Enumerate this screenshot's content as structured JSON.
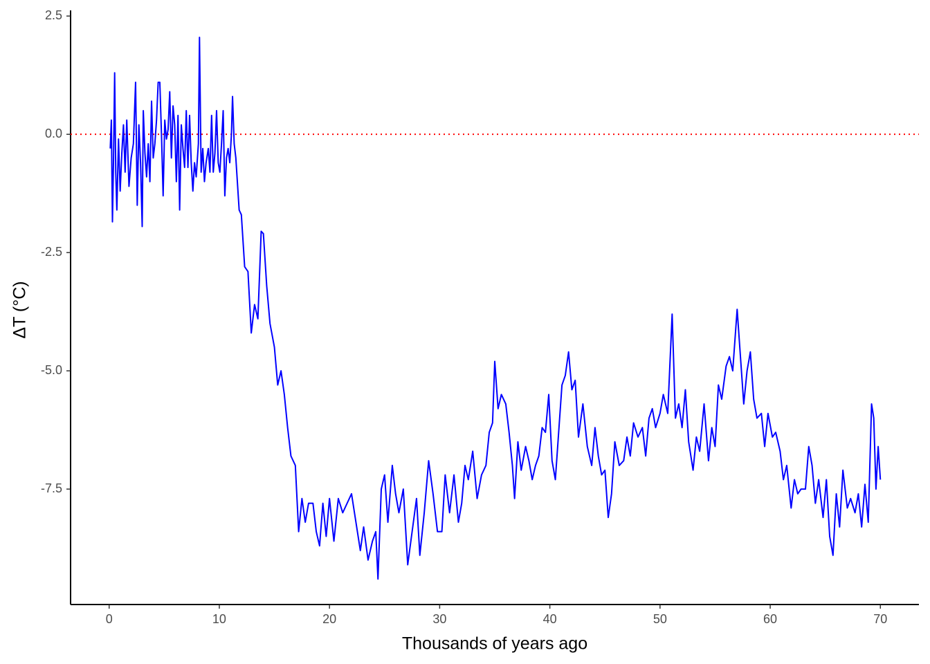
{
  "chart_data": {
    "type": "line",
    "x_label": "Thousands of years ago",
    "y_label": "ΔT (°C)",
    "xlim": [
      -3.5,
      73.5
    ],
    "ylim": [
      -9.94,
      2.62
    ],
    "xticks": [
      0,
      10,
      20,
      30,
      40,
      50,
      60,
      70
    ],
    "yticks": [
      2.5,
      {
        "value": 0,
        "label": "0.0"
      },
      -2.5,
      {
        "value": -5,
        "label": "-5.0"
      },
      -7.5
    ],
    "reference_line": {
      "value": 0,
      "color": "#ff0000"
    },
    "series": [
      {
        "color": "#0000ff",
        "x": [
          0.1,
          0.2,
          0.3,
          0.4,
          0.5,
          0.6,
          0.7,
          0.85,
          1.0,
          1.15,
          1.3,
          1.45,
          1.6,
          1.8,
          2.0,
          2.2,
          2.4,
          2.55,
          2.7,
          2.85,
          3.0,
          3.1,
          3.25,
          3.4,
          3.55,
          3.7,
          3.85,
          4.0,
          4.15,
          4.3,
          4.45,
          4.6,
          4.75,
          4.9,
          5.05,
          5.2,
          5.35,
          5.5,
          5.65,
          5.8,
          5.95,
          6.1,
          6.25,
          6.4,
          6.55,
          6.7,
          6.85,
          7.0,
          7.15,
          7.3,
          7.45,
          7.6,
          7.75,
          7.9,
          8.1,
          8.2,
          8.35,
          8.5,
          8.65,
          8.8,
          9.0,
          9.15,
          9.3,
          9.45,
          9.6,
          9.75,
          9.9,
          10.05,
          10.2,
          10.35,
          10.5,
          10.65,
          10.8,
          10.95,
          11.1,
          11.2,
          11.35,
          11.5,
          11.8,
          12.0,
          12.3,
          12.6,
          12.9,
          13.2,
          13.5,
          13.8,
          14.0,
          14.3,
          14.6,
          15.0,
          15.3,
          15.6,
          15.9,
          16.2,
          16.5,
          16.9,
          17.2,
          17.5,
          17.8,
          18.1,
          18.5,
          18.8,
          19.1,
          19.4,
          19.7,
          20.0,
          20.4,
          20.8,
          21.2,
          21.6,
          22.0,
          22.4,
          22.8,
          23.1,
          23.5,
          23.9,
          24.2,
          24.4,
          24.7,
          25.0,
          25.3,
          25.7,
          26.0,
          26.3,
          26.7,
          27.1,
          27.5,
          27.9,
          28.2,
          28.6,
          29.0,
          29.4,
          29.8,
          30.2,
          30.5,
          30.9,
          31.3,
          31.7,
          32.0,
          32.3,
          32.6,
          33.0,
          33.4,
          33.8,
          34.2,
          34.5,
          34.8,
          35.0,
          35.3,
          35.6,
          36.0,
          36.3,
          36.6,
          36.8,
          37.1,
          37.4,
          37.8,
          38.1,
          38.4,
          38.7,
          39.0,
          39.3,
          39.6,
          39.9,
          40.2,
          40.5,
          40.8,
          41.1,
          41.4,
          41.7,
          42.0,
          42.3,
          42.6,
          43.0,
          43.4,
          43.8,
          44.1,
          44.4,
          44.7,
          45.0,
          45.3,
          45.6,
          45.9,
          46.3,
          46.7,
          47.0,
          47.3,
          47.6,
          48.0,
          48.4,
          48.7,
          49.0,
          49.3,
          49.6,
          50.0,
          50.3,
          50.7,
          51.1,
          51.4,
          51.7,
          52.0,
          52.3,
          52.6,
          53.0,
          53.3,
          53.6,
          54.0,
          54.4,
          54.7,
          55.0,
          55.3,
          55.6,
          56.0,
          56.3,
          56.6,
          57.0,
          57.3,
          57.6,
          57.9,
          58.2,
          58.5,
          58.8,
          59.2,
          59.5,
          59.8,
          60.2,
          60.5,
          60.9,
          61.2,
          61.5,
          61.9,
          62.2,
          62.5,
          62.8,
          63.2,
          63.5,
          63.8,
          64.1,
          64.4,
          64.8,
          65.1,
          65.4,
          65.7,
          66.0,
          66.3,
          66.6,
          67.0,
          67.3,
          67.7,
          68.0,
          68.3,
          68.6,
          68.9,
          69.2,
          69.4,
          69.6,
          69.8,
          70.0
        ],
        "values": [
          -0.3,
          0.3,
          -1.85,
          -0.5,
          1.3,
          -0.8,
          -1.6,
          -0.1,
          -1.2,
          -0.4,
          0.2,
          -0.8,
          0.3,
          -1.1,
          -0.5,
          -0.2,
          1.1,
          -1.5,
          0.2,
          -0.6,
          -1.95,
          0.5,
          -0.4,
          -0.9,
          -0.2,
          -1.0,
          0.7,
          -0.5,
          -0.2,
          0.3,
          1.1,
          1.1,
          0.0,
          -1.3,
          0.3,
          -0.1,
          0.1,
          0.9,
          -0.5,
          0.6,
          0.2,
          -1.0,
          0.4,
          -1.6,
          0.2,
          -0.3,
          -0.7,
          0.5,
          -0.7,
          0.4,
          -0.6,
          -1.2,
          -0.6,
          -0.9,
          -0.2,
          2.05,
          -0.8,
          -0.3,
          -1.0,
          -0.6,
          -0.3,
          -0.8,
          0.4,
          -0.8,
          -0.4,
          0.5,
          -0.6,
          -0.8,
          -0.2,
          0.5,
          -1.3,
          -0.5,
          -0.3,
          -0.6,
          0.0,
          0.8,
          -0.2,
          -0.5,
          -1.6,
          -1.7,
          -2.8,
          -2.9,
          -4.2,
          -3.6,
          -3.9,
          -2.05,
          -2.1,
          -3.2,
          -4.0,
          -4.5,
          -5.3,
          -5.0,
          -5.5,
          -6.2,
          -6.8,
          -7.0,
          -8.4,
          -7.7,
          -8.2,
          -7.8,
          -7.8,
          -8.4,
          -8.7,
          -7.8,
          -8.5,
          -7.7,
          -8.6,
          -7.7,
          -8.0,
          -7.8,
          -7.6,
          -8.2,
          -8.8,
          -8.3,
          -9.0,
          -8.6,
          -8.4,
          -9.4,
          -7.5,
          -7.2,
          -8.2,
          -7.0,
          -7.6,
          -8.0,
          -7.5,
          -9.1,
          -8.4,
          -7.7,
          -8.9,
          -8.0,
          -6.9,
          -7.6,
          -8.4,
          -8.4,
          -7.2,
          -8.0,
          -7.2,
          -8.2,
          -7.8,
          -7.0,
          -7.3,
          -6.7,
          -7.7,
          -7.2,
          -7.0,
          -6.3,
          -6.1,
          -4.8,
          -5.8,
          -5.5,
          -5.7,
          -6.3,
          -7.0,
          -7.7,
          -6.5,
          -7.1,
          -6.6,
          -6.9,
          -7.3,
          -7.0,
          -6.8,
          -6.2,
          -6.3,
          -5.5,
          -6.9,
          -7.3,
          -6.3,
          -5.3,
          -5.1,
          -4.6,
          -5.4,
          -5.2,
          -6.4,
          -5.7,
          -6.6,
          -7.0,
          -6.2,
          -6.8,
          -7.2,
          -7.1,
          -8.1,
          -7.6,
          -6.5,
          -7.0,
          -6.9,
          -6.4,
          -6.8,
          -6.1,
          -6.4,
          -6.2,
          -6.8,
          -6.0,
          -5.8,
          -6.2,
          -5.9,
          -5.5,
          -5.9,
          -3.8,
          -6.0,
          -5.7,
          -6.2,
          -5.4,
          -6.5,
          -7.1,
          -6.4,
          -6.7,
          -5.7,
          -6.9,
          -6.2,
          -6.6,
          -5.3,
          -5.6,
          -4.9,
          -4.7,
          -5.0,
          -3.7,
          -4.7,
          -5.7,
          -5.0,
          -4.6,
          -5.6,
          -6.0,
          -5.9,
          -6.6,
          -5.9,
          -6.4,
          -6.3,
          -6.7,
          -7.3,
          -7.0,
          -7.9,
          -7.3,
          -7.6,
          -7.5,
          -7.5,
          -6.6,
          -7.0,
          -7.8,
          -7.3,
          -8.1,
          -7.3,
          -8.5,
          -8.9,
          -7.6,
          -8.3,
          -7.1,
          -7.9,
          -7.7,
          -8.0,
          -7.6,
          -8.3,
          -7.4,
          -8.2,
          -5.7,
          -6.0,
          -7.5,
          -6.6,
          -7.3
        ]
      }
    ]
  }
}
